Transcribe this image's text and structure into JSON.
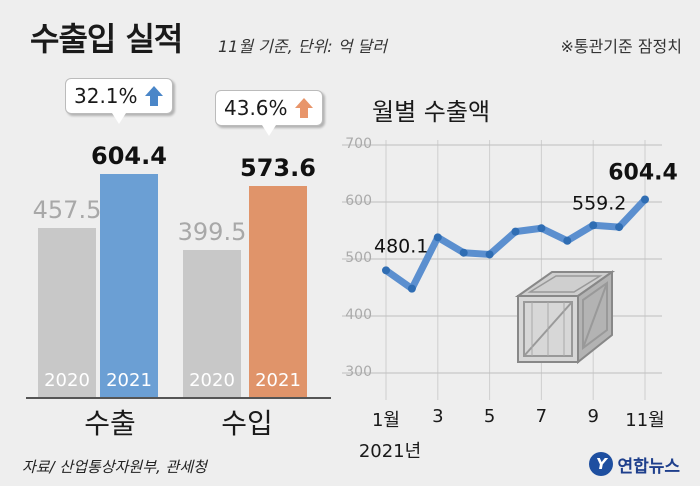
{
  "header": {
    "title": "수출입 실적",
    "subtitle": "11월 기준, 단위: 억 달러",
    "note": "※통관기준 잠정치"
  },
  "footer": {
    "source": "자료/ 산업통상자원부, 관세청",
    "logo_text": "연합뉴스",
    "logo_mark": "Y"
  },
  "colors": {
    "bar_2020": "#c8c8c8",
    "bar_export_2021": "#6b9fd4",
    "bar_import_2021": "#e0946a",
    "line": "#5b8fcf",
    "arrow_export": "#4a86c8",
    "arrow_import": "#e8956a"
  },
  "chart_data": [
    {
      "type": "bar",
      "categories": [
        "수출",
        "수입"
      ],
      "series": [
        {
          "name": "2020",
          "values": [
            457.5,
            399.5
          ]
        },
        {
          "name": "2021",
          "values": [
            604.4,
            573.6
          ]
        }
      ],
      "value_labels": [
        [
          "457.5",
          "604.4"
        ],
        [
          "399.5",
          "573.6"
        ]
      ],
      "growth_labels": [
        "32.1%",
        "43.6%"
      ],
      "year_labels": [
        "2020",
        "2021"
      ],
      "ylim": [
        0,
        700
      ]
    },
    {
      "type": "line",
      "title": "월별 수출액",
      "x": [
        1,
        2,
        3,
        4,
        5,
        6,
        7,
        8,
        9,
        10,
        11
      ],
      "values": [
        480.1,
        448,
        538,
        511,
        508,
        548,
        554,
        532,
        559.2,
        556,
        604.4
      ],
      "ylim": [
        300,
        700
      ],
      "yticks": [
        300,
        400,
        500,
        600,
        700
      ],
      "xtick_labels": [
        "1월",
        "3",
        "5",
        "7",
        "9",
        "11월"
      ],
      "xtick_positions": [
        1,
        3,
        5,
        7,
        9,
        11
      ],
      "xtick_sublabel": "2021년",
      "annotations": [
        {
          "x": 1,
          "label": "480.1"
        },
        {
          "x": 9,
          "label": "559.2"
        },
        {
          "x": 11,
          "label": "604.4"
        }
      ],
      "grid": true
    }
  ]
}
